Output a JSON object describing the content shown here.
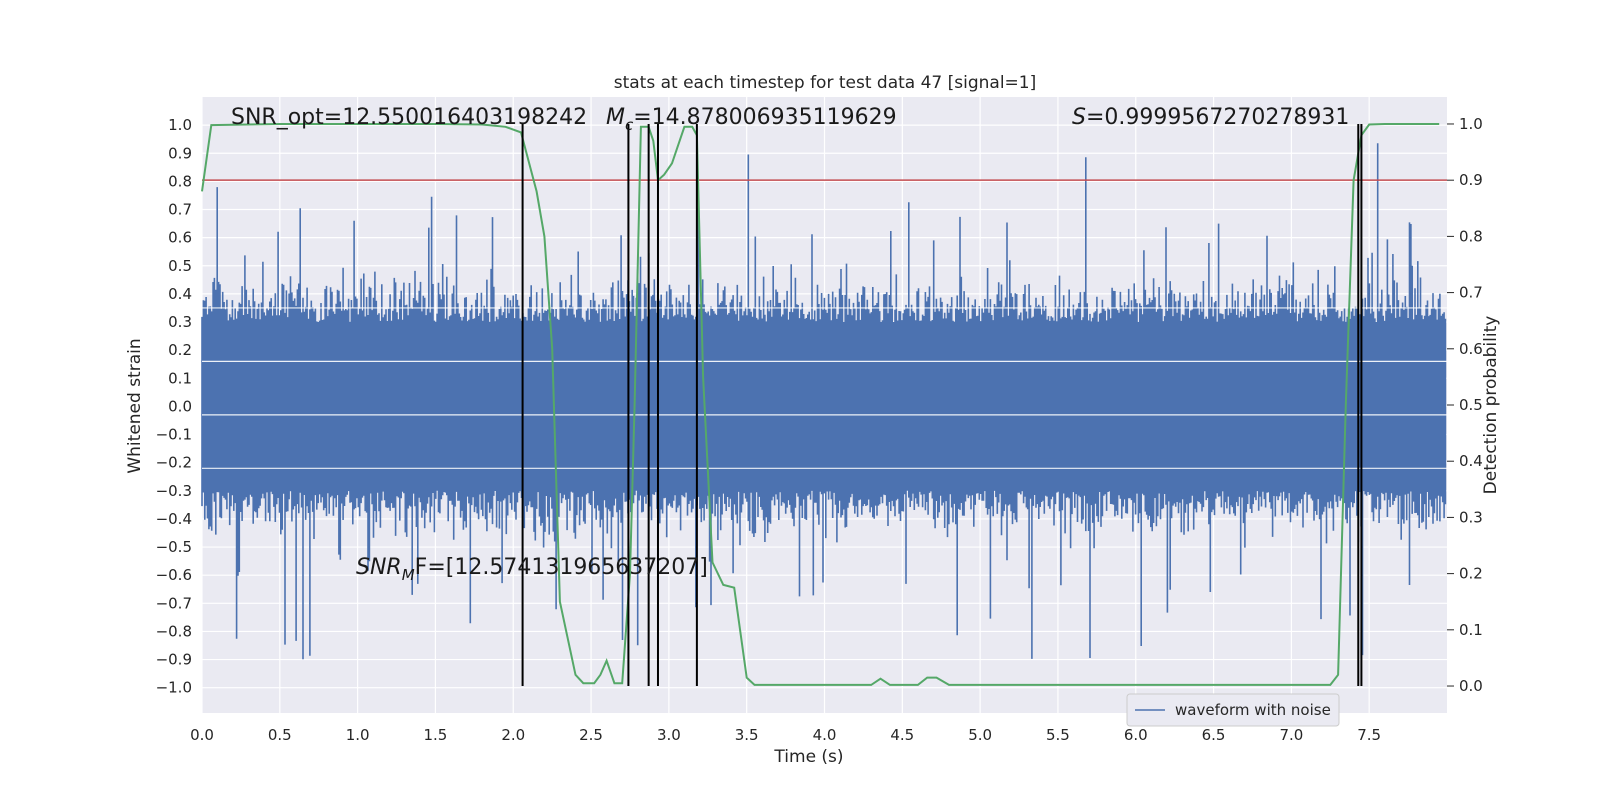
{
  "chart_data": {
    "type": "line",
    "title": "stats at each timestep for test data 47 [signal=1]",
    "xlabel": "Time (s)",
    "ylabel": "Whitened strain",
    "y2label": "Detection probability",
    "xlim": [
      0.0,
      8.0
    ],
    "ylim": [
      -1.09,
      1.1
    ],
    "y2lim": [
      -0.048,
      1.048
    ],
    "xticks": [
      "0.0",
      "0.5",
      "1.0",
      "1.5",
      "2.0",
      "2.5",
      "3.0",
      "3.5",
      "4.0",
      "4.5",
      "5.0",
      "5.5",
      "6.0",
      "6.5",
      "7.0",
      "7.5"
    ],
    "yticks": [
      "1.0",
      "0.9",
      "0.8",
      "0.7",
      "0.6",
      "0.5",
      "0.4",
      "0.3",
      "0.2",
      "0.1",
      "0.0",
      "-0.1",
      "-0.2",
      "-0.3",
      "-0.4",
      "-0.5",
      "-0.6",
      "-0.7",
      "-0.8",
      "-0.9",
      "-1.0"
    ],
    "y2ticks": [
      "1.0",
      "0.9",
      "0.8",
      "0.7",
      "0.6",
      "0.5",
      "0.4",
      "0.3",
      "0.2",
      "0.1",
      "0.0"
    ],
    "grid": true,
    "legend": {
      "placement": "lower-right",
      "entries": [
        "waveform with noise"
      ]
    },
    "colors": {
      "waveform": "#4c72b0",
      "probability": "#55a868",
      "threshold": "#c44e52",
      "markers": "#000000",
      "background": "#eaeaf2"
    },
    "threshold": 0.9,
    "vertical_markers_x": [
      2.06,
      2.74,
      2.87,
      2.93,
      3.18,
      7.43,
      7.45
    ],
    "annotations": {
      "snr_opt": "SNR_opt=12.550016403198242",
      "mc_symbol": "M",
      "mc_sub": "c",
      "mc_value": "=14.878006935119629",
      "s_symbol": "S",
      "s_value": "=0.9999567270278931",
      "snr_mf_symbol": "SNR",
      "snr_mf_sub": "M",
      "snr_mf_value": "F=[12.574131965637207]"
    },
    "series": [
      {
        "name": "waveform with noise",
        "x": [
          0.0,
          7.99
        ],
        "y_range": [
          -1.0,
          1.0
        ]
      },
      {
        "x": [
          0.0,
          0.06,
          0.5,
          1.0,
          1.5,
          1.8,
          1.95,
          2.05,
          2.15,
          2.2,
          2.25,
          2.3,
          2.4,
          2.45,
          2.52,
          2.56,
          2.6,
          2.65,
          2.7,
          2.75,
          2.78,
          2.82,
          2.87,
          2.9,
          2.93,
          2.97,
          3.02,
          3.1,
          3.15,
          3.18,
          3.22,
          3.28,
          3.35,
          3.42,
          3.5,
          3.55,
          3.7,
          4.0,
          4.3,
          4.36,
          4.42,
          4.5,
          4.6,
          4.66,
          4.72,
          4.8,
          4.9,
          5.0,
          5.5,
          6.0,
          6.2,
          6.5,
          6.7,
          7.0,
          7.15,
          7.25,
          7.3,
          7.35,
          7.4,
          7.45,
          7.5,
          7.6,
          7.95
        ],
        "y": [
          0.88,
          0.998,
          1.0,
          1.0,
          1.0,
          0.999,
          0.995,
          0.985,
          0.88,
          0.8,
          0.6,
          0.15,
          0.02,
          0.005,
          0.005,
          0.02,
          0.045,
          0.005,
          0.005,
          0.2,
          0.5,
          0.995,
          0.995,
          0.97,
          0.9,
          0.91,
          0.93,
          0.995,
          0.995,
          0.98,
          0.55,
          0.22,
          0.18,
          0.175,
          0.015,
          0.002,
          0.002,
          0.002,
          0.002,
          0.013,
          0.002,
          0.002,
          0.002,
          0.015,
          0.015,
          0.002,
          0.002,
          0.002,
          0.002,
          0.002,
          0.002,
          0.002,
          0.002,
          0.002,
          0.002,
          0.002,
          0.02,
          0.5,
          0.9,
          0.98,
          0.999,
          1.0,
          1.0
        ]
      }
    ]
  }
}
